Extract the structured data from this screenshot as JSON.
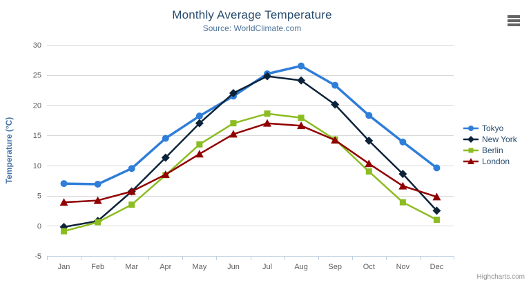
{
  "header": {
    "title": "Monthly Average Temperature",
    "subtitle": "Source: WorldClimate.com"
  },
  "credit": "Highcharts.com",
  "chart_data": {
    "type": "line",
    "title": "Monthly Average Temperature",
    "subtitle": "Source: WorldClimate.com",
    "categories": [
      "Jan",
      "Feb",
      "Mar",
      "Apr",
      "May",
      "Jun",
      "Jul",
      "Aug",
      "Sep",
      "Oct",
      "Nov",
      "Dec"
    ],
    "xlabel": "",
    "ylabel": "Temperature (°C)",
    "ylim": [
      -5,
      30
    ],
    "ytick_step": 5,
    "grid": true,
    "legend_position": "right",
    "series": [
      {
        "name": "Tokyo",
        "color": "#2f7ed8",
        "marker": "circle",
        "line_width": 3.5,
        "values": [
          7.0,
          6.9,
          9.5,
          14.5,
          18.2,
          21.5,
          25.2,
          26.5,
          23.3,
          18.3,
          13.9,
          9.6
        ]
      },
      {
        "name": "New York",
        "color": "#0d233a",
        "marker": "diamond",
        "line_width": 2.5,
        "values": [
          -0.2,
          0.8,
          5.7,
          11.3,
          17.0,
          22.0,
          24.8,
          24.1,
          20.1,
          14.1,
          8.6,
          2.5
        ]
      },
      {
        "name": "Berlin",
        "color": "#8bbc21",
        "marker": "square",
        "line_width": 2.5,
        "values": [
          -0.9,
          0.6,
          3.5,
          8.4,
          13.5,
          17.0,
          18.6,
          17.9,
          14.3,
          9.0,
          3.9,
          1.0
        ]
      },
      {
        "name": "London",
        "color": "#910000",
        "marker": "triangle",
        "line_width": 2.5,
        "values": [
          3.9,
          4.2,
          5.7,
          8.5,
          11.9,
          15.2,
          17.0,
          16.6,
          14.2,
          10.3,
          6.6,
          4.8
        ]
      }
    ]
  },
  "colors": {
    "title": "#274b6d",
    "subtitle": "#4d759e",
    "axis_label": "#606060",
    "axis_title": "#4572a7",
    "grid": "#d8d8d8",
    "axis_line": "#c0d0e0",
    "legend_text": "#274b6d",
    "credit": "#909090"
  }
}
